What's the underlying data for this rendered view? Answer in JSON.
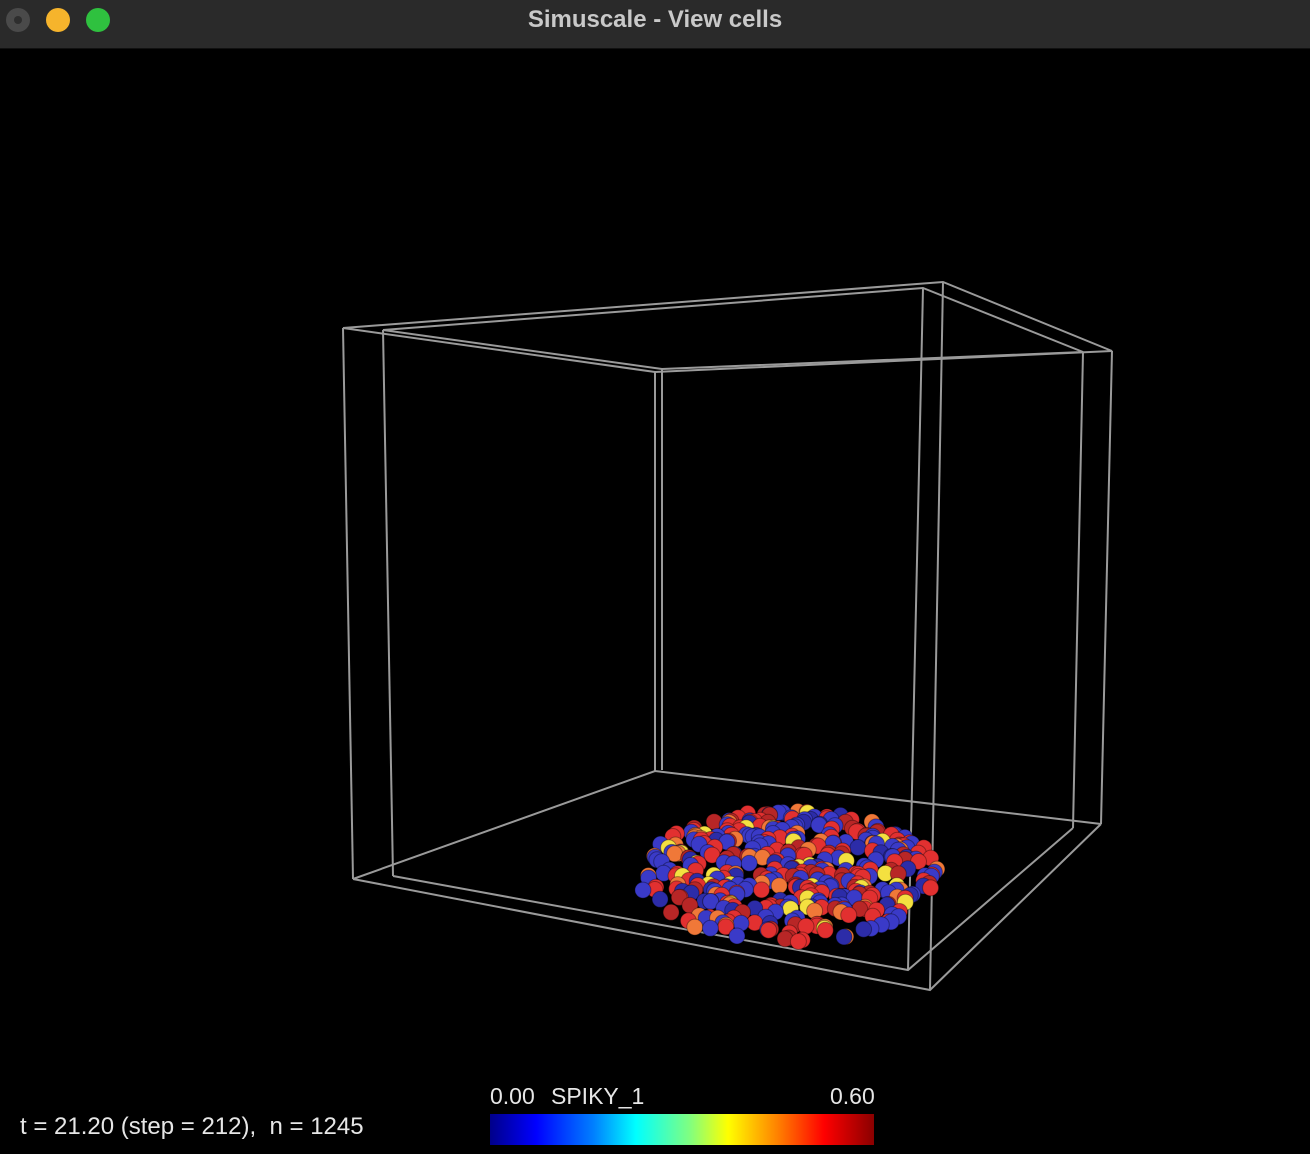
{
  "window": {
    "title": "Simuscale - View cells",
    "buttons": {
      "close": "close-icon",
      "minimize": "minimize-icon",
      "maximize": "maximize-icon"
    }
  },
  "status": {
    "text": "t = 21.20 (step = 212),  n = 1245"
  },
  "colorbar": {
    "min_label": "0.00",
    "variable": "SPIKY_1",
    "max_label": "0.60",
    "colors": [
      "#00008a",
      "#0000ff",
      "#0080ff",
      "#00ffff",
      "#80ff80",
      "#ffff00",
      "#ff8000",
      "#ff0000",
      "#8a0000"
    ]
  },
  "scene": {
    "background": "#000000",
    "box_color": "#9a9a9a",
    "cell_palette": [
      "#3a3ac8",
      "#2c2ca8",
      "#e23030",
      "#b82626",
      "#f07838",
      "#f4e040"
    ]
  }
}
